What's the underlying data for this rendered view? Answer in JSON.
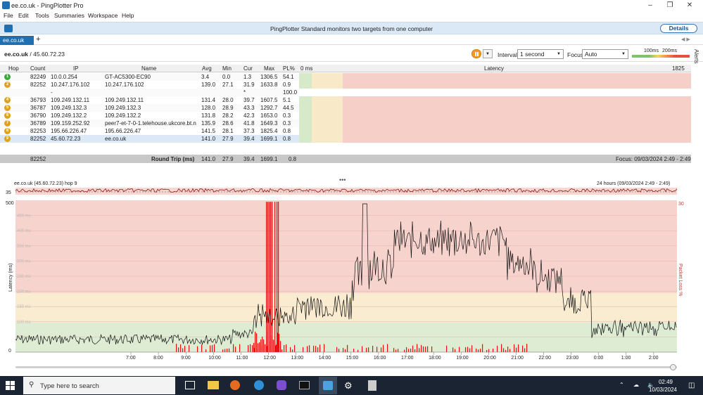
{
  "window": {
    "title": "ee.co.uk - PingPlotter Pro",
    "controls": [
      "minimize",
      "maximize",
      "close"
    ]
  },
  "menu": [
    "File",
    "Edit",
    "Tools",
    "Summaries",
    "Workspace",
    "Help"
  ],
  "banner": {
    "message": "PingPlotter Standard monitors two targets from one computer",
    "details_label": "Details"
  },
  "tabs": [
    {
      "label": "ee.co.uk"
    }
  ],
  "target": {
    "name": "ee.co.uk",
    "sep": " / ",
    "ip": "45.60.72.23",
    "interval_label": "Interval",
    "interval_value": "1 second",
    "focus_label": "Focus",
    "focus_value": "Auto",
    "scale_100": "100ms",
    "scale_200": "200ms",
    "alerts_label": "Alerts"
  },
  "table": {
    "headers": {
      "hop": "Hop",
      "count": "Count",
      "ip": "IP",
      "name": "Name",
      "avg": "Avg",
      "min": "Min",
      "cur": "Cur",
      "max": "Max",
      "pl": "PL%",
      "zero": "0 ms",
      "latency": "Latency",
      "maxms": "1825 ms"
    },
    "rows": [
      {
        "hop": "1",
        "count": "82249",
        "ip": "10.0.0.254",
        "name": "GT-AC5300-EC90",
        "avg": "3.4",
        "min": "0.0",
        "cur": "1.3",
        "max": "1306.5",
        "pl": "54.1",
        "color": "#3aa83a"
      },
      {
        "hop": "2",
        "count": "82252",
        "ip": "10.247.176.102",
        "name": "10.247.176.102",
        "avg": "139.0",
        "min": "27.1",
        "cur": "31.9",
        "max": "1633.8",
        "pl": "0.9",
        "color": "#e0a020"
      },
      {
        "hop": "",
        "count": "",
        "ip": "-",
        "name": "",
        "avg": "",
        "min": "",
        "cur": "*",
        "max": "",
        "pl": "100.0",
        "color": ""
      },
      {
        "hop": "4",
        "count": "36793",
        "ip": "109.249.132.11",
        "name": "109.249.132.11",
        "avg": "131.4",
        "min": "28.0",
        "cur": "39.7",
        "max": "1607.5",
        "pl": "5.1",
        "color": "#e0a020"
      },
      {
        "hop": "5",
        "count": "36787",
        "ip": "109.249.132.3",
        "name": "109.249.132.3",
        "avg": "128.0",
        "min": "28.9",
        "cur": "43.3",
        "max": "1292.7",
        "pl": "44.5",
        "color": "#e0a020"
      },
      {
        "hop": "6",
        "count": "36790",
        "ip": "109.249.132.2",
        "name": "109.249.132.2",
        "avg": "131.8",
        "min": "28.2",
        "cur": "42.3",
        "max": "1653.0",
        "pl": "0.3",
        "color": "#e0a020"
      },
      {
        "hop": "7",
        "count": "36789",
        "ip": "109.159.252.92",
        "name": "peer7-et-7-0-1.telehouse.ukcore.bt.n",
        "avg": "135.9",
        "min": "28.6",
        "cur": "41.8",
        "max": "1649.3",
        "pl": "0.3",
        "color": "#e0a020"
      },
      {
        "hop": "8",
        "count": "82253",
        "ip": "195.66.226.47",
        "name": "195.66.226.47",
        "avg": "141.5",
        "min": "28.1",
        "cur": "37.3",
        "max": "1825.4",
        "pl": "0.8",
        "color": "#e0a020"
      },
      {
        "hop": "9",
        "count": "82252",
        "ip": "45.60.72.23",
        "name": "ee.co.uk",
        "avg": "141.0",
        "min": "27.9",
        "cur": "39.4",
        "max": "1699.1",
        "pl": "0.8",
        "color": "#e0a020"
      }
    ],
    "round_trip": {
      "count": "82252",
      "label": "Round Trip (ms)",
      "avg": "141.0",
      "min": "27.9",
      "cur": "39.4",
      "max": "1699.1",
      "pl": "0.8",
      "focus": "Focus: 09/03/2024 2:49 - 2:49"
    }
  },
  "graph": {
    "title": "ee.co.uk (45.60.72.23) hop 9",
    "range": "24 hours (09/03/2024 2:49 - 2:49)",
    "mini_tick": "35",
    "y_left_label": "Latency (ms)",
    "y_right_label": "Packet Loss %",
    "y_top": "500",
    "y_zero": "0",
    "pl_top": "30",
    "y_grid_labels": [
      "450 ms",
      "400 ms",
      "350 ms",
      "300 ms",
      "250 ms",
      "200 ms",
      "150 ms",
      "100 ms",
      "50 ms"
    ],
    "x_ticks": [
      "7:00",
      "8:00",
      "9:00",
      "10:00",
      "11:00",
      "12:00",
      "13:00",
      "14:00",
      "15:00",
      "16:00",
      "17:00",
      "18:00",
      "19:00",
      "20:00",
      "21:00",
      "22:00",
      "23:00",
      "0:00",
      "1:00",
      "2:00"
    ]
  },
  "taskbar": {
    "search_placeholder": "Type here to search",
    "time": "02:49",
    "date": "10/03/2024"
  }
}
